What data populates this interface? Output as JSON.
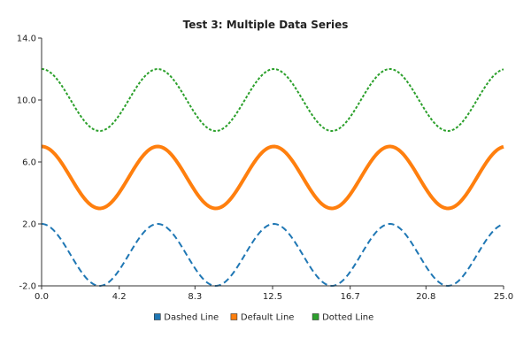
{
  "chart_data": {
    "type": "line",
    "title": "Test 3: Multiple Data Series",
    "xlim": [
      0,
      25
    ],
    "ylim": [
      -2,
      14
    ],
    "x_ticks": [
      "0.0",
      "4.2",
      "8.3",
      "12.5",
      "16.7",
      "20.8",
      "25.0"
    ],
    "y_ticks": [
      "-2.0",
      "2.0",
      "6.0",
      "10.0",
      "14.0"
    ],
    "grid": false,
    "legend_position": "bottom-center",
    "series": [
      {
        "name": "Dashed Line",
        "color": "#1f77b4",
        "style": "dashed",
        "function": "y = 2*cos(x) (sampled at step 0.1 over 0 to 25)",
        "amplitude": 2,
        "offset": 0
      },
      {
        "name": "Default Line",
        "color": "#ff7f0e",
        "style": "solid",
        "function": "y = 5 + 2*cos(x) (sampled at step 0.1 over 0 to 25)",
        "amplitude": 2,
        "offset": 5
      },
      {
        "name": "Dotted Line",
        "color": "#2ca02c",
        "style": "dotted",
        "function": "y = 10 + 2*cos(x) (sampled at step 0.1 over 0 to 25)",
        "amplitude": 2,
        "offset": 10
      }
    ]
  }
}
